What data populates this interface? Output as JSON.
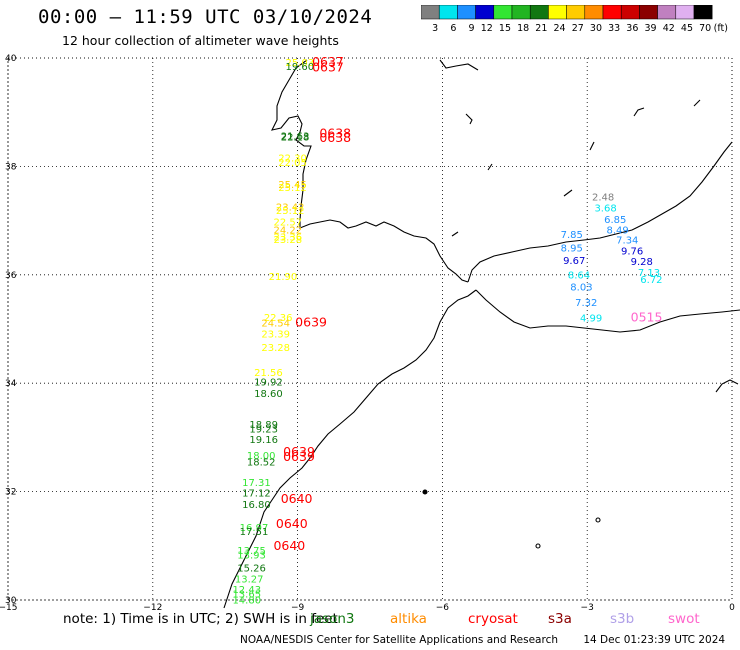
{
  "header": {
    "title": "00:00 – 11:59 UTC 03/10/2024",
    "subtitle": "12 hour collection of altimeter wave heights"
  },
  "legend": {
    "unit": "(ft)",
    "bins": [
      {
        "label": "3",
        "color": "#808080"
      },
      {
        "label": "6",
        "color": "#00e5ee"
      },
      {
        "label": "9",
        "color": "#1e90ff"
      },
      {
        "label": "12",
        "color": "#0000d0"
      },
      {
        "label": "15",
        "color": "#33e633"
      },
      {
        "label": "18",
        "color": "#22b522"
      },
      {
        "label": "21",
        "color": "#117711"
      },
      {
        "label": "24",
        "color": "#ffff00"
      },
      {
        "label": "27",
        "color": "#ffcc00"
      },
      {
        "label": "30",
        "color": "#ff8c00"
      },
      {
        "label": "33",
        "color": "#ff0000"
      },
      {
        "label": "36",
        "color": "#cc0000"
      },
      {
        "label": "39",
        "color": "#8b0000"
      },
      {
        "label": "42",
        "color": "#c080c0"
      },
      {
        "label": "45",
        "color": "#e0b0f0"
      },
      {
        "label": "70",
        "color": "#000000"
      }
    ]
  },
  "map": {
    "lat_labels": [
      "40",
      "38",
      "36",
      "34",
      "32",
      "30"
    ],
    "lon_labels": [
      "−15",
      "−12",
      "−9",
      "−6",
      "−3",
      "0"
    ],
    "wave_labels": [
      {
        "text": "25.03",
        "lon": -9.25,
        "lat": 39.85,
        "color": "#ffff00"
      },
      {
        "text": "19.60",
        "lon": -9.25,
        "lat": 39.78,
        "color": "#117711"
      },
      {
        "text": "21.63",
        "lon": -9.35,
        "lat": 38.5,
        "color": "#117711"
      },
      {
        "text": "22.18",
        "lon": -9.35,
        "lat": 38.48,
        "color": "#117711"
      },
      {
        "text": "22.30",
        "lon": -9.4,
        "lat": 38.09,
        "color": "#ffff00"
      },
      {
        "text": "22.05",
        "lon": -9.4,
        "lat": 38.01,
        "color": "#ffff00"
      },
      {
        "text": "25.45",
        "lon": -9.4,
        "lat": 37.6,
        "color": "#ffcc00"
      },
      {
        "text": "25.12",
        "lon": -9.4,
        "lat": 37.55,
        "color": "#ffff00"
      },
      {
        "text": "23.42",
        "lon": -9.45,
        "lat": 37.19,
        "color": "#ffcc00"
      },
      {
        "text": "25.12",
        "lon": -9.45,
        "lat": 37.12,
        "color": "#ffff00"
      },
      {
        "text": "22.57",
        "lon": -9.5,
        "lat": 36.91,
        "color": "#ffff00"
      },
      {
        "text": "24.22",
        "lon": -9.5,
        "lat": 36.76,
        "color": "#ffcc00"
      },
      {
        "text": "23.36",
        "lon": -9.5,
        "lat": 36.63,
        "color": "#ffff00"
      },
      {
        "text": "23.28",
        "lon": -9.5,
        "lat": 36.59,
        "color": "#ffff00"
      },
      {
        "text": "21.90",
        "lon": -9.6,
        "lat": 35.9,
        "color": "#ffff00"
      },
      {
        "text": "22.36",
        "lon": -9.7,
        "lat": 35.15,
        "color": "#ffff00"
      },
      {
        "text": "24.54",
        "lon": -9.75,
        "lat": 35.05,
        "color": "#ffcc00"
      },
      {
        "text": "23.39",
        "lon": -9.75,
        "lat": 34.84,
        "color": "#ffff00"
      },
      {
        "text": "23.28",
        "lon": -9.75,
        "lat": 34.59,
        "color": "#ffff00"
      },
      {
        "text": "21.56",
        "lon": -9.9,
        "lat": 34.13,
        "color": "#ffff00"
      },
      {
        "text": "19.92",
        "lon": -9.9,
        "lat": 33.96,
        "color": "#117711"
      },
      {
        "text": "18.60",
        "lon": -9.9,
        "lat": 33.75,
        "color": "#117711"
      },
      {
        "text": "18.89",
        "lon": -10.0,
        "lat": 33.17,
        "color": "#117711"
      },
      {
        "text": "19.23",
        "lon": -10.0,
        "lat": 33.09,
        "color": "#117711"
      },
      {
        "text": "19.16",
        "lon": -10.0,
        "lat": 32.9,
        "color": "#117711"
      },
      {
        "text": "18.00",
        "lon": -10.05,
        "lat": 32.6,
        "color": "#33e633"
      },
      {
        "text": "18.52",
        "lon": -10.05,
        "lat": 32.48,
        "color": "#117711"
      },
      {
        "text": "17.31",
        "lon": -10.15,
        "lat": 32.1,
        "color": "#33e633"
      },
      {
        "text": "17.12",
        "lon": -10.15,
        "lat": 31.91,
        "color": "#117711"
      },
      {
        "text": "16.80",
        "lon": -10.15,
        "lat": 31.7,
        "color": "#117711"
      },
      {
        "text": "16.97",
        "lon": -10.2,
        "lat": 31.27,
        "color": "#33e633"
      },
      {
        "text": "17.51",
        "lon": -10.2,
        "lat": 31.2,
        "color": "#117711"
      },
      {
        "text": "13.75",
        "lon": -10.25,
        "lat": 30.85,
        "color": "#33e633"
      },
      {
        "text": "13.93",
        "lon": -10.25,
        "lat": 30.77,
        "color": "#33e633"
      },
      {
        "text": "15.26",
        "lon": -10.25,
        "lat": 30.53,
        "color": "#117711"
      },
      {
        "text": "13.27",
        "lon": -10.3,
        "lat": 30.32,
        "color": "#33e633"
      },
      {
        "text": "12.43",
        "lon": -10.35,
        "lat": 30.13,
        "color": "#33e633"
      },
      {
        "text": "13.65",
        "lon": -10.35,
        "lat": 30.05,
        "color": "#33e633"
      },
      {
        "text": "14.80",
        "lon": -10.35,
        "lat": 29.94,
        "color": "#33e633"
      },
      {
        "text": "2.48",
        "lon": -2.9,
        "lat": 37.37,
        "color": "#808080"
      },
      {
        "text": "3.68",
        "lon": -2.85,
        "lat": 37.17,
        "color": "#00e5ee"
      },
      {
        "text": "6.85",
        "lon": -2.65,
        "lat": 36.96,
        "color": "#1e90ff"
      },
      {
        "text": "8.49",
        "lon": -2.6,
        "lat": 36.76,
        "color": "#1e90ff"
      },
      {
        "text": "7.34",
        "lon": -2.4,
        "lat": 36.58,
        "color": "#1e90ff"
      },
      {
        "text": "9.76",
        "lon": -2.3,
        "lat": 36.37,
        "color": "#0000d0"
      },
      {
        "text": "9.28",
        "lon": -2.1,
        "lat": 36.18,
        "color": "#0000d0"
      },
      {
        "text": "7.13",
        "lon": -1.95,
        "lat": 35.98,
        "color": "#00e5ee"
      },
      {
        "text": "6.72",
        "lon": -1.9,
        "lat": 35.85,
        "color": "#00e5ee"
      },
      {
        "text": "7.85",
        "lon": -3.55,
        "lat": 36.68,
        "color": "#1e90ff"
      },
      {
        "text": "8.95",
        "lon": -3.55,
        "lat": 36.43,
        "color": "#1e90ff"
      },
      {
        "text": "9.67",
        "lon": -3.5,
        "lat": 36.2,
        "color": "#0000d0"
      },
      {
        "text": "8.64",
        "lon": -3.4,
        "lat": 35.93,
        "color": "#00e5ee"
      },
      {
        "text": "8.03",
        "lon": -3.35,
        "lat": 35.71,
        "color": "#1e90ff"
      },
      {
        "text": "7.32",
        "lon": -3.25,
        "lat": 35.42,
        "color": "#1e90ff"
      },
      {
        "text": "4.99",
        "lon": -3.15,
        "lat": 35.14,
        "color": "#00e5ee"
      }
    ],
    "pass_labels": [
      {
        "text": "0637",
        "lon": -8.7,
        "lat": 39.85,
        "color": "#ff0000"
      },
      {
        "text": "0637",
        "lon": -8.7,
        "lat": 39.75,
        "color": "#ff0000"
      },
      {
        "text": "0638",
        "lon": -8.55,
        "lat": 38.53,
        "color": "#ff0000"
      },
      {
        "text": "0638",
        "lon": -8.55,
        "lat": 38.45,
        "color": "#ff0000"
      },
      {
        "text": "0639",
        "lon": -9.05,
        "lat": 35.05,
        "color": "#ff0000"
      },
      {
        "text": "0639",
        "lon": -9.3,
        "lat": 32.66,
        "color": "#ff0000"
      },
      {
        "text": "0639",
        "lon": -9.3,
        "lat": 32.56,
        "color": "#ff0000"
      },
      {
        "text": "0640",
        "lon": -9.35,
        "lat": 31.79,
        "color": "#ff0000"
      },
      {
        "text": "0640",
        "lon": -9.45,
        "lat": 31.33,
        "color": "#ff0000"
      },
      {
        "text": "0640",
        "lon": -9.5,
        "lat": 30.92,
        "color": "#ff0000"
      },
      {
        "text": "0515",
        "lon": -2.1,
        "lat": 35.14,
        "color": "#ff66cc"
      }
    ]
  },
  "note": {
    "text": "note: 1) Time is in UTC; 2) SWH is in feet",
    "satellites": [
      {
        "name": "jason3",
        "color": "#117711"
      },
      {
        "name": "altika",
        "color": "#ff8c00"
      },
      {
        "name": "cryosat",
        "color": "#ff0000"
      },
      {
        "name": "s3a",
        "color": "#8b0000"
      },
      {
        "name": "s3b",
        "color": "#b0a0e8"
      },
      {
        "name": "swot",
        "color": "#ff66cc"
      }
    ]
  },
  "footer": {
    "credit": "NOAA/NESDIS Center for Satellite Applications and Research",
    "timestamp": "14 Dec 01:23:39 UTC 2024"
  }
}
